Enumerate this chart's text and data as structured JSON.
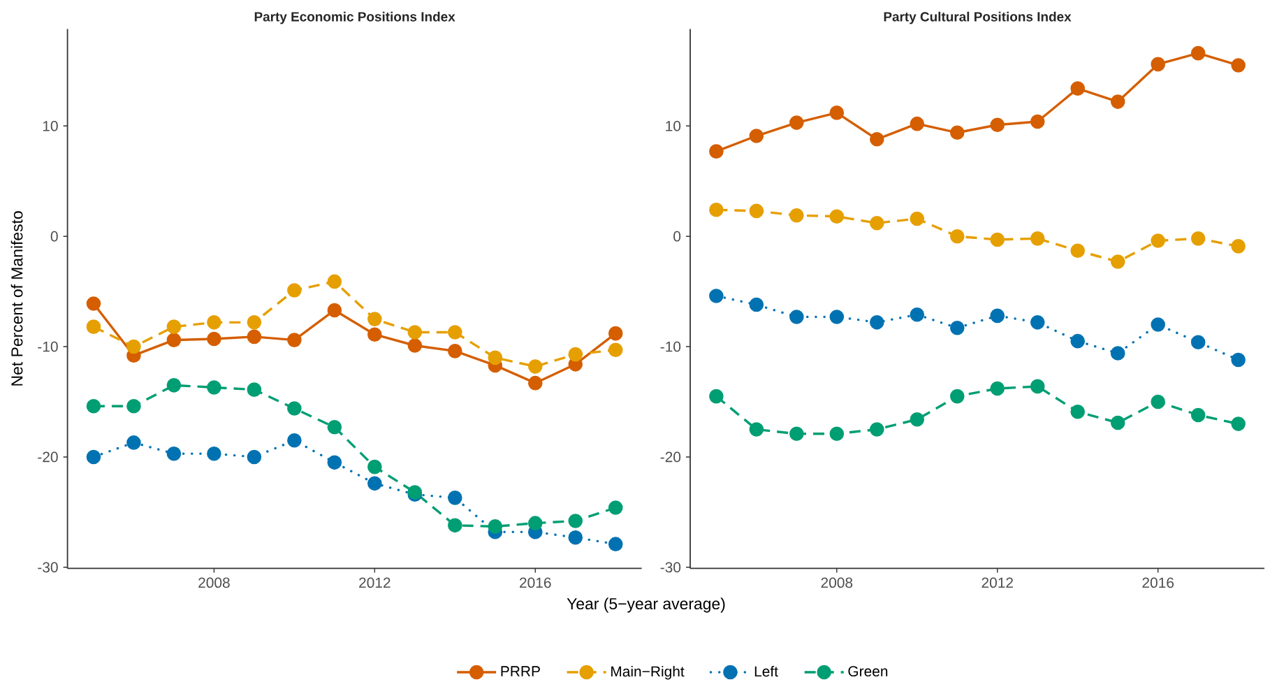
{
  "chart_data": [
    {
      "type": "line",
      "title": "Party Economic Positions Index",
      "xlabel": "Year (5−year average)",
      "ylabel": "Net Percent of Manifesto",
      "x": [
        2005,
        2006,
        2007,
        2008,
        2009,
        2010,
        2011,
        2012,
        2013,
        2014,
        2015,
        2016,
        2017,
        2018
      ],
      "xlim": [
        2004.35,
        2018.65
      ],
      "xticks": [
        2008,
        2012,
        2016
      ],
      "ylim": [
        -30.1,
        18.8
      ],
      "yticks": [
        -30,
        -20,
        -10,
        0,
        10
      ],
      "marker": "circle",
      "legend": "bottom",
      "series": [
        {
          "name": "PRRP",
          "color": "#d55e00",
          "line_style": "solid",
          "values": [
            -6.1,
            -10.8,
            -9.4,
            -9.3,
            -9.1,
            -9.4,
            -6.7,
            -8.9,
            -9.9,
            -10.4,
            -11.7,
            -13.3,
            -11.6,
            -8.8
          ]
        },
        {
          "name": "Main−Right",
          "color": "#e69f00",
          "line_style": "dashed",
          "values": [
            -8.2,
            -10.0,
            -8.2,
            -7.8,
            -7.8,
            -4.9,
            -4.1,
            -7.5,
            -8.7,
            -8.7,
            -11.0,
            -11.8,
            -10.7,
            -10.3
          ]
        },
        {
          "name": "Left",
          "color": "#0072b2",
          "line_style": "dotted",
          "values": [
            -20.0,
            -18.7,
            -19.7,
            -19.7,
            -20.0,
            -18.5,
            -20.5,
            -22.4,
            -23.4,
            -23.7,
            -26.8,
            -26.8,
            -27.3,
            -27.9
          ]
        },
        {
          "name": "Green",
          "color": "#009e73",
          "line_style": "dashed",
          "values": [
            -15.4,
            -15.4,
            -13.5,
            -13.7,
            -13.9,
            -15.6,
            -17.3,
            -20.9,
            -23.2,
            -26.2,
            -26.3,
            -26.0,
            -25.8,
            -24.6
          ]
        }
      ]
    },
    {
      "type": "line",
      "title": "Party Cultural Positions Index",
      "x": [
        2005,
        2006,
        2007,
        2008,
        2009,
        2010,
        2011,
        2012,
        2013,
        2014,
        2015,
        2016,
        2017,
        2018
      ],
      "xlim": [
        2004.35,
        2018.65
      ],
      "xticks": [
        2008,
        2012,
        2016
      ],
      "ylim": [
        -30.1,
        18.8
      ],
      "yticks": [
        -30,
        -20,
        -10,
        0,
        10
      ],
      "marker": "circle",
      "series": [
        {
          "color": "#d55e00",
          "line_style": "solid",
          "values": [
            7.7,
            9.1,
            10.3,
            11.2,
            8.8,
            10.2,
            9.4,
            10.1,
            10.4,
            13.4,
            12.2,
            15.6,
            16.6,
            15.5
          ]
        },
        {
          "color": "#e69f00",
          "line_style": "dashed",
          "values": [
            2.4,
            2.3,
            1.9,
            1.8,
            1.2,
            1.6,
            0.0,
            -0.3,
            -0.2,
            -1.3,
            -2.3,
            -0.4,
            -0.2,
            -0.9
          ]
        },
        {
          "color": "#0072b2",
          "line_style": "dotted",
          "values": [
            -5.4,
            -6.2,
            -7.3,
            -7.3,
            -7.8,
            -7.1,
            -8.3,
            -7.2,
            -7.8,
            -9.5,
            -10.6,
            -8.0,
            -9.6,
            -11.2
          ]
        },
        {
          "color": "#009e73",
          "line_style": "dashed",
          "values": [
            -14.5,
            -17.5,
            -17.9,
            -17.9,
            -17.5,
            -16.6,
            -14.5,
            -13.8,
            -13.6,
            -15.9,
            -16.9,
            -15.0,
            -16.2,
            -17.0
          ]
        }
      ]
    }
  ]
}
